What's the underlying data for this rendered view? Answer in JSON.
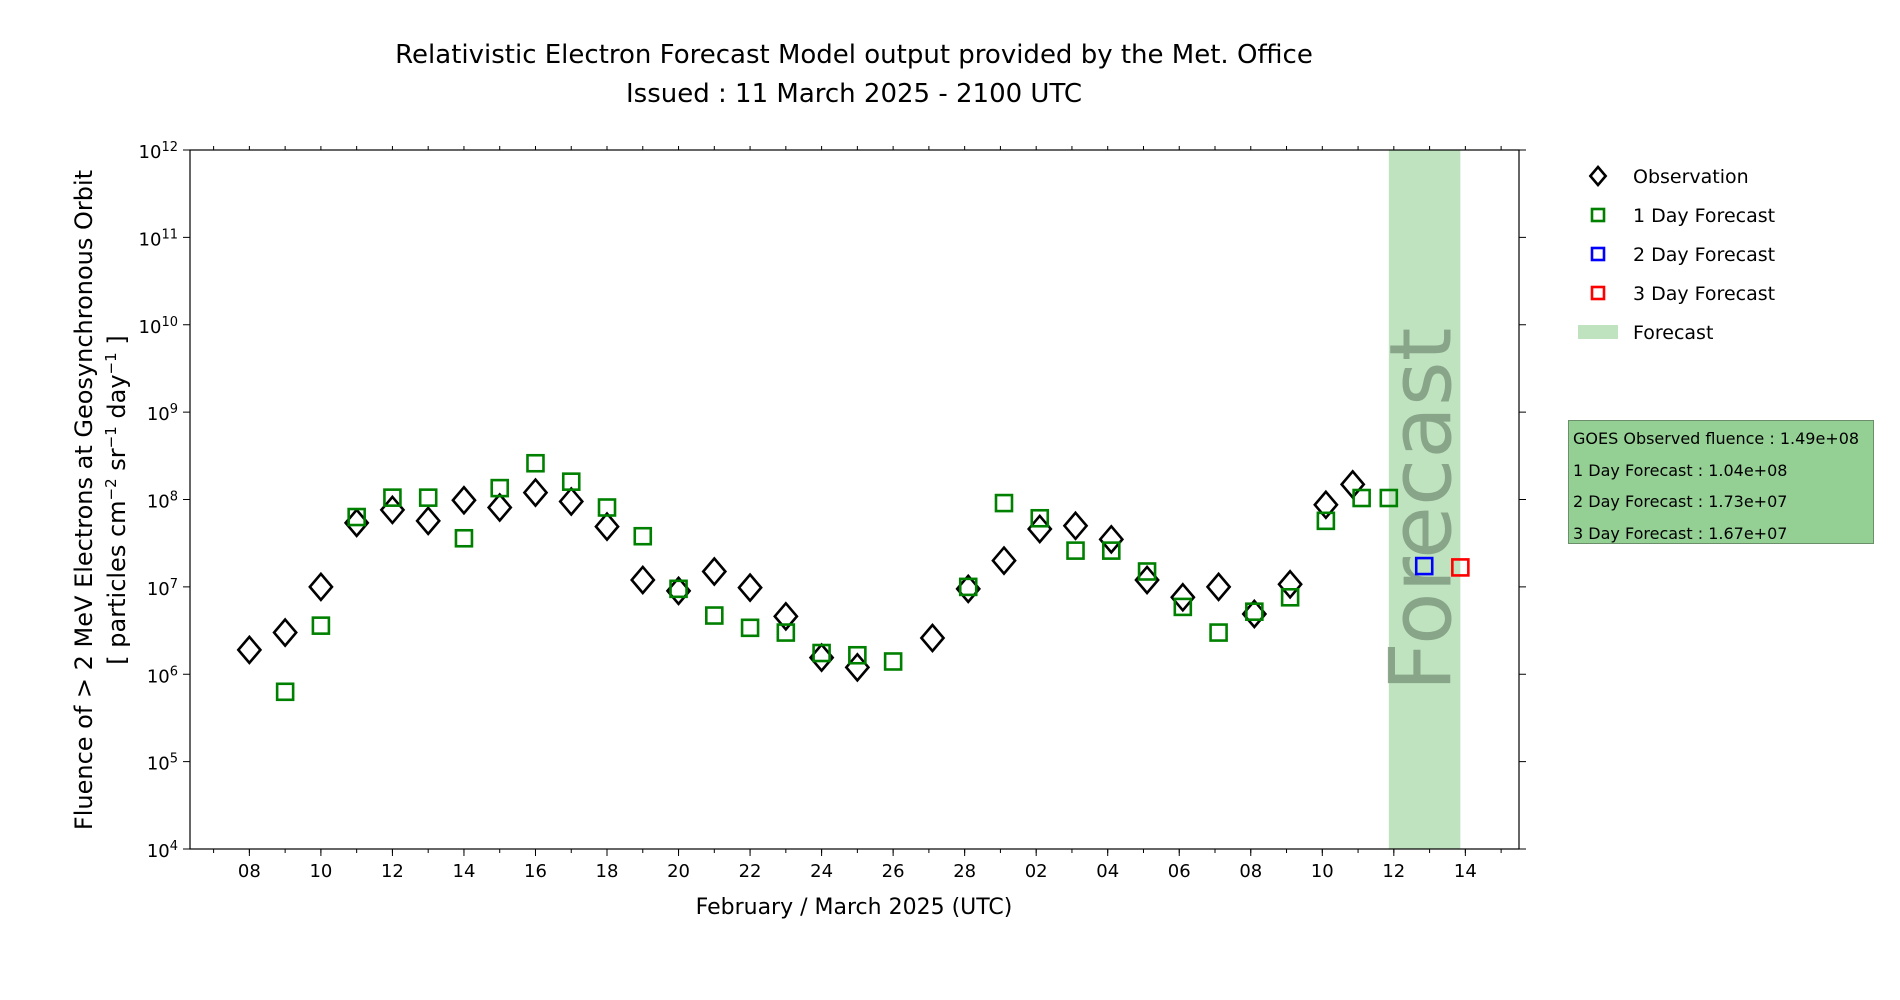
{
  "chart_data": {
    "type": "scatter",
    "title": "Relativistic Electron Forecast Model output provided by the Met. Office",
    "subtitle": "Issued : 11 March 2025 - 2100 UTC",
    "xlabel": "February / March 2025 (UTC)",
    "ylabel_line1": "Fluence of > 2 MeV Electrons at Geosynchronous Orbit",
    "ylabel_line2_parts": [
      "[ particles cm",
      "−2",
      " sr",
      "−1",
      " day",
      "−1",
      " ]"
    ],
    "x_units": "days since 08 Feb 2025",
    "xlim": [
      -1.66,
      35.5
    ],
    "ylim": [
      10000.0,
      1000000000000.0
    ],
    "yscale": "log",
    "x_ticks": [
      {
        "day": 0,
        "label": "08"
      },
      {
        "day": 2,
        "label": "10"
      },
      {
        "day": 4,
        "label": "12"
      },
      {
        "day": 6,
        "label": "14"
      },
      {
        "day": 8,
        "label": "16"
      },
      {
        "day": 10,
        "label": "18"
      },
      {
        "day": 12,
        "label": "20"
      },
      {
        "day": 14,
        "label": "22"
      },
      {
        "day": 16,
        "label": "24"
      },
      {
        "day": 18,
        "label": "26"
      },
      {
        "day": 20,
        "label": "28"
      },
      {
        "day": 22,
        "label": "02"
      },
      {
        "day": 24,
        "label": "04"
      },
      {
        "day": 26,
        "label": "06"
      },
      {
        "day": 28,
        "label": "08"
      },
      {
        "day": 30,
        "label": "10"
      },
      {
        "day": 32,
        "label": "12"
      },
      {
        "day": 34,
        "label": "14"
      }
    ],
    "y_ticks": [
      4,
      5,
      6,
      7,
      8,
      9,
      10,
      11,
      12
    ],
    "forecast_band": {
      "from_day": 31.86,
      "to_day": 33.86,
      "label": "Forecast",
      "color": "#bfe3bf"
    },
    "legend_position": "right",
    "series": [
      {
        "name": "Observation",
        "marker": "diamond",
        "color": "#000000",
        "points": [
          [
            0,
            1900000.0
          ],
          [
            1,
            3000000.0
          ],
          [
            2,
            10000000.0
          ],
          [
            3,
            54000000.0
          ],
          [
            4,
            76000000.0
          ],
          [
            5,
            57000000.0
          ],
          [
            6,
            98000000.0
          ],
          [
            7,
            81000000.0
          ],
          [
            8,
            120000000.0
          ],
          [
            9,
            95000000.0
          ],
          [
            10,
            49000000.0
          ],
          [
            11,
            12000000.0
          ],
          [
            12,
            9000000.0
          ],
          [
            13,
            15000000.0
          ],
          [
            14,
            9800000.0
          ],
          [
            15,
            4600000.0
          ],
          [
            16,
            1550000.0
          ],
          [
            17,
            1200000.0
          ],
          [
            19.1,
            2600000.0
          ],
          [
            20.1,
            9500000.0
          ],
          [
            21.1,
            20000000.0
          ],
          [
            22.1,
            46000000.0
          ],
          [
            23.1,
            50000000.0
          ],
          [
            24.1,
            35000000.0
          ],
          [
            25.1,
            12000000.0
          ],
          [
            26.1,
            7600000.0
          ],
          [
            27.1,
            10000000.0
          ],
          [
            28.1,
            4900000.0
          ],
          [
            29.1,
            10700000.0
          ],
          [
            30.1,
            87000000.0
          ],
          [
            30.85,
            149000000.0
          ]
        ]
      },
      {
        "name": "1 Day Forecast",
        "marker": "square",
        "color": "#008000",
        "points": [
          [
            1,
            630000.0
          ],
          [
            2,
            3600000.0
          ],
          [
            3,
            63000000.0
          ],
          [
            4,
            105000000.0
          ],
          [
            5,
            105000000.0
          ],
          [
            6,
            36000000.0
          ],
          [
            7,
            135000000.0
          ],
          [
            8,
            260000000.0
          ],
          [
            9,
            160000000.0
          ],
          [
            10,
            81000000.0
          ],
          [
            11,
            38000000.0
          ],
          [
            12,
            9500000.0
          ],
          [
            13,
            4700000.0
          ],
          [
            14,
            3400000.0
          ],
          [
            15,
            3000000.0
          ],
          [
            16,
            1750000.0
          ],
          [
            17,
            1650000.0
          ],
          [
            18,
            1400000.0
          ],
          [
            20.1,
            10000000.0
          ],
          [
            21.1,
            91000000.0
          ],
          [
            22.1,
            61000000.0
          ],
          [
            23.1,
            26000000.0
          ],
          [
            24.1,
            26000000.0
          ],
          [
            25.1,
            15000000.0
          ],
          [
            26.1,
            5900000.0
          ],
          [
            27.1,
            3000000.0
          ],
          [
            28.1,
            5200000.0
          ],
          [
            29.1,
            7600000.0
          ],
          [
            30.1,
            57000000.0
          ],
          [
            31.1,
            104000000.0
          ],
          [
            31.86,
            104000000.0
          ]
        ]
      },
      {
        "name": "2 Day Forecast",
        "marker": "square",
        "color": "#0000ff",
        "points": [
          [
            32.85,
            17300000.0
          ]
        ]
      },
      {
        "name": "3 Day Forecast",
        "marker": "square",
        "color": "#ff0000",
        "points": [
          [
            33.86,
            16700000.0
          ]
        ]
      }
    ],
    "legend": [
      {
        "label": "Observation",
        "marker": "diamond",
        "color": "#000000"
      },
      {
        "label": "1 Day Forecast",
        "marker": "square",
        "color": "#008000"
      },
      {
        "label": "2 Day Forecast",
        "marker": "square",
        "color": "#0000ff"
      },
      {
        "label": "3 Day Forecast",
        "marker": "square",
        "color": "#ff0000"
      },
      {
        "label": "Forecast",
        "marker": "patch",
        "color": "#bfe3bf"
      }
    ],
    "info_box": [
      "GOES Observed fluence : 1.49e+08",
      "1 Day Forecast : 1.04e+08",
      "2 Day Forecast : 1.73e+07",
      "3 Day Forecast : 1.67e+07"
    ]
  }
}
